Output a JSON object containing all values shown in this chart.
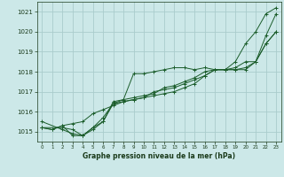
{
  "title": "Graphe pression niveau de la mer (hPa)",
  "bg_color": "#cce8e8",
  "grid_color": "#aacccc",
  "line_color": "#1a5c2a",
  "text_color": "#1a3a1a",
  "xlim": [
    -0.5,
    23.5
  ],
  "ylim": [
    1014.5,
    1021.5
  ],
  "yticks": [
    1015,
    1016,
    1017,
    1018,
    1019,
    1020,
    1021
  ],
  "xticks": [
    0,
    1,
    2,
    3,
    4,
    5,
    6,
    7,
    8,
    9,
    10,
    11,
    12,
    13,
    14,
    15,
    16,
    17,
    18,
    19,
    20,
    21,
    22,
    23
  ],
  "series": [
    {
      "x": [
        0,
        1,
        2,
        3,
        4,
        5,
        6,
        7,
        8,
        9,
        10,
        11,
        12,
        13,
        14,
        15,
        16,
        17,
        18,
        19,
        20,
        21,
        22,
        23
      ],
      "y": [
        1015.2,
        1015.1,
        1015.3,
        1014.8,
        1014.8,
        1015.2,
        1015.7,
        1016.4,
        1016.6,
        1017.9,
        1017.9,
        1018.0,
        1018.1,
        1018.2,
        1018.2,
        1018.1,
        1018.2,
        1018.1,
        1018.1,
        1018.5,
        1019.4,
        1020.0,
        1020.9,
        1021.2
      ]
    },
    {
      "x": [
        0,
        1,
        2,
        3,
        4,
        5,
        6,
        7,
        8,
        9,
        10,
        11,
        12,
        13,
        14,
        15,
        16,
        17,
        18,
        19,
        20,
        21,
        22,
        23
      ],
      "y": [
        1015.2,
        1015.1,
        1015.3,
        1015.4,
        1015.5,
        1015.9,
        1016.1,
        1016.3,
        1016.5,
        1016.6,
        1016.7,
        1016.8,
        1016.9,
        1017.0,
        1017.2,
        1017.4,
        1017.8,
        1018.1,
        1018.1,
        1018.1,
        1018.1,
        1018.5,
        1019.4,
        1020.0
      ]
    },
    {
      "x": [
        0,
        2,
        3,
        4,
        5,
        6,
        7,
        8,
        9,
        10,
        11,
        12,
        13,
        14,
        15,
        16,
        17,
        18,
        19,
        20,
        21,
        22,
        23
      ],
      "y": [
        1015.5,
        1015.1,
        1014.9,
        1014.8,
        1015.1,
        1015.5,
        1016.4,
        1016.5,
        1016.6,
        1016.7,
        1017.0,
        1017.1,
        1017.2,
        1017.4,
        1017.6,
        1017.8,
        1018.1,
        1018.1,
        1018.1,
        1018.2,
        1018.5,
        1019.4,
        1020.0
      ]
    },
    {
      "x": [
        0,
        2,
        3,
        4,
        5,
        6,
        7,
        8,
        9,
        10,
        11,
        12,
        13,
        14,
        15,
        16,
        17,
        18,
        19,
        20,
        21,
        22,
        23
      ],
      "y": [
        1015.2,
        1015.2,
        1015.1,
        1014.8,
        1015.2,
        1015.5,
        1016.5,
        1016.6,
        1016.7,
        1016.8,
        1016.9,
        1017.2,
        1017.3,
        1017.5,
        1017.7,
        1018.0,
        1018.1,
        1018.1,
        1018.2,
        1018.5,
        1018.5,
        1019.8,
        1020.9
      ]
    }
  ]
}
